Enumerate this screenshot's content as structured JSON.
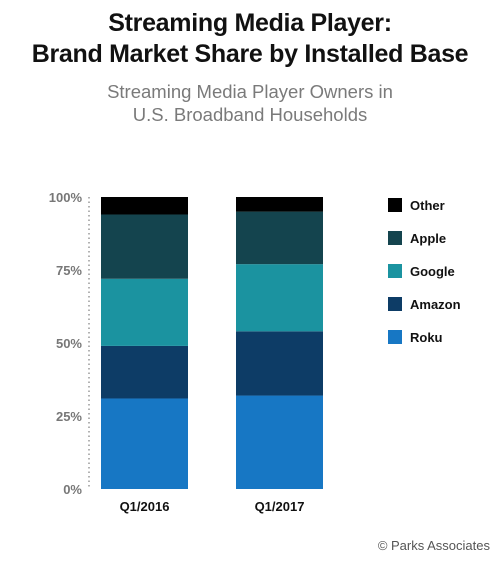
{
  "title_line1": "Streaming Media Player:",
  "title_line2": "Brand Market Share by Installed Base",
  "subtitle_line1": "Streaming Media Player Owners in",
  "subtitle_line2": "U.S. Broadband Households",
  "credit": "© Parks Associates",
  "colors": {
    "Other": "#000000",
    "Apple": "#14444e",
    "Google": "#1b93a0",
    "Amazon": "#0d3c66",
    "Roku": "#1777c4"
  },
  "chart_data": {
    "type": "bar",
    "stacked": true,
    "categories": [
      "Q1/2016",
      "Q1/2017"
    ],
    "series": [
      {
        "name": "Roku",
        "values": [
          31,
          32
        ]
      },
      {
        "name": "Amazon",
        "values": [
          18,
          22
        ]
      },
      {
        "name": "Google",
        "values": [
          23,
          23
        ]
      },
      {
        "name": "Apple",
        "values": [
          22,
          18
        ]
      },
      {
        "name": "Other",
        "values": [
          6,
          5
        ]
      }
    ],
    "yticks": [
      "0%",
      "25%",
      "50%",
      "75%",
      "100%"
    ],
    "ylim": [
      0,
      100
    ],
    "legend_order": [
      "Other",
      "Apple",
      "Google",
      "Amazon",
      "Roku"
    ],
    "legend_position": "right",
    "grid": false
  }
}
